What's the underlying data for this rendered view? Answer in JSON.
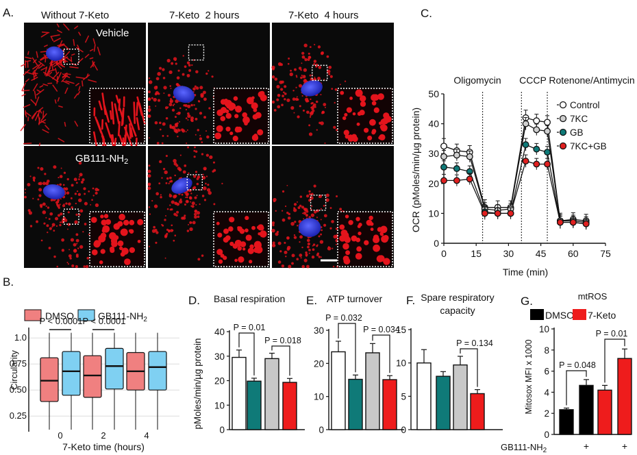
{
  "panel_labels": {
    "A": "A.",
    "B": "B.",
    "C": "C.",
    "D": "D.",
    "E": "E.",
    "F": "F.",
    "G": "G."
  },
  "microscopy": {
    "columns": [
      "Without 7-Keto",
      "7-Keto  2 hours",
      "7-Keto  4 hours"
    ],
    "row_labels": [
      "Vehicle",
      "GB111-NH2"
    ],
    "colors": {
      "mito": "#e4141c",
      "nucleus": "#2a36d8",
      "background": "#0a0a0a"
    }
  },
  "chart_data": [
    {
      "id": "B",
      "type": "boxplot",
      "legend": [
        "DMSO",
        "GB111-NH2"
      ],
      "colors": {
        "DMSO": "#f08080",
        "GB111-NH2": "#7fd0f2"
      },
      "categories": [
        "0",
        "2",
        "4"
      ],
      "xlabel": "7-Keto time (hours)",
      "ylabel": "Circularity",
      "yticks": [
        "1.0",
        "0.75",
        "0.50",
        "0.25"
      ],
      "ylim": [
        0.1,
        1.1
      ],
      "boxes": [
        {
          "cat": "0",
          "group": "DMSO",
          "whisker_low": 0.12,
          "q1": 0.39,
          "median": 0.59,
          "q3": 0.81,
          "whisker_high": 1.05
        },
        {
          "cat": "0",
          "group": "GB111-NH2",
          "whisker_low": 0.12,
          "q1": 0.45,
          "median": 0.68,
          "q3": 0.87,
          "whisker_high": 1.05
        },
        {
          "cat": "2",
          "group": "DMSO",
          "whisker_low": 0.12,
          "q1": 0.43,
          "median": 0.64,
          "q3": 0.83,
          "whisker_high": 1.05
        },
        {
          "cat": "2",
          "group": "GB111-NH2",
          "whisker_low": 0.12,
          "q1": 0.51,
          "median": 0.73,
          "q3": 0.9,
          "whisker_high": 1.05
        },
        {
          "cat": "4",
          "group": "DMSO",
          "whisker_low": 0.12,
          "q1": 0.5,
          "median": 0.68,
          "q3": 0.86,
          "whisker_high": 1.05
        },
        {
          "cat": "4",
          "group": "GB111-NH2",
          "whisker_low": 0.12,
          "q1": 0.5,
          "median": 0.72,
          "q3": 0.87,
          "whisker_high": 1.05
        }
      ],
      "annotations": [
        "P < 0.0001",
        "P < 0.0001"
      ]
    },
    {
      "id": "C",
      "type": "line",
      "xlabel": "Time (min)",
      "ylabel": "OCR (pMoles/min/µg protein)",
      "xlim": [
        0,
        75
      ],
      "ylim": [
        0,
        50
      ],
      "xticks": [
        "0",
        "15",
        "30",
        "45",
        "60",
        "75"
      ],
      "yticks": [
        "0",
        "10",
        "20",
        "30",
        "40",
        "50"
      ],
      "phase_labels": [
        "Oligomycin",
        "CCCP",
        "Rotenone/Antimycin"
      ],
      "phase_times": [
        18,
        36,
        48
      ],
      "x": [
        0,
        6,
        12,
        19,
        25,
        31,
        38,
        43,
        48,
        54,
        60,
        66
      ],
      "series": [
        {
          "name": "Control",
          "color": "#ffffff",
          "values": [
            32.5,
            31,
            30.5,
            12,
            12,
            12,
            42,
            41,
            40.5,
            7.5,
            8,
            7.5
          ]
        },
        {
          "name": "7KC",
          "color": "#cfcfcf",
          "values": [
            29,
            29.5,
            29,
            11.5,
            11,
            11.5,
            40,
            38,
            37.5,
            7.5,
            7.5,
            7
          ]
        },
        {
          "name": "GB",
          "color": "#0f7a78",
          "values": [
            25.5,
            25,
            24,
            10.5,
            10,
            10,
            33,
            31.5,
            30.5,
            7,
            7,
            6.5
          ]
        },
        {
          "name": "7KC+GB",
          "color": "#e02020",
          "values": [
            21,
            21,
            21.5,
            10,
            10,
            10,
            27.5,
            26.5,
            26.5,
            7,
            7,
            6.5
          ]
        }
      ]
    },
    {
      "id": "D",
      "type": "bar",
      "title": "Basal respiration",
      "ylabel": "pMoles/min/µg protein",
      "ylim": [
        0,
        40
      ],
      "yticks": [
        "0",
        "10",
        "20",
        "30",
        "40"
      ],
      "values": [
        29.5,
        19.8,
        29,
        19.3
      ],
      "errors": [
        3,
        1.2,
        2.2,
        1.6
      ],
      "colors": [
        "#ffffff",
        "#0f7a78",
        "#c8c8c8",
        "#ee1c1c"
      ],
      "annotations": [
        "P = 0.01",
        "P = 0.018"
      ]
    },
    {
      "id": "E",
      "type": "bar",
      "title": "ATP turnover",
      "ylim": [
        0,
        30
      ],
      "yticks": [
        "0",
        "10",
        "20",
        "30"
      ],
      "values": [
        23.5,
        15.2,
        23.2,
        15.1
      ],
      "errors": [
        3.2,
        1.3,
        2.8,
        1.2
      ],
      "colors": [
        "#ffffff",
        "#0f7a78",
        "#c8c8c8",
        "#ee1c1c"
      ],
      "annotations": [
        "P = 0.032",
        "P = 0.034"
      ]
    },
    {
      "id": "F",
      "type": "bar",
      "title": "Spare respiratory capacity",
      "title_lines": [
        "Spare respiratory",
        "capacity"
      ],
      "ylim": [
        0,
        15
      ],
      "yticks": [
        "0",
        "5",
        "10",
        "15"
      ],
      "values": [
        10,
        8,
        9.7,
        5.4
      ],
      "errors": [
        2,
        0.7,
        1.3,
        0.6
      ],
      "colors": [
        "#ffffff",
        "#0f7a78",
        "#c8c8c8",
        "#ee1c1c"
      ],
      "annotations": [
        "P = 0.134"
      ]
    },
    {
      "id": "G",
      "type": "bar",
      "title": "mtROS",
      "legend": [
        "DMSO",
        "7-Keto"
      ],
      "ylabel": "Mitosox MFI x 1000",
      "ylim": [
        0,
        10
      ],
      "yticks": [
        "0",
        "2",
        "4",
        "6",
        "8",
        "10"
      ],
      "values": [
        2.35,
        4.65,
        4.2,
        7.2
      ],
      "errors": [
        0.15,
        0.55,
        0.45,
        0.9
      ],
      "colors": [
        "#000000",
        "#000000",
        "#ee1c1c",
        "#ee1c1c"
      ],
      "annotations": [
        "P = 0.048",
        "P = 0.01"
      ],
      "xfactor_label": "GB111-NH2",
      "xfactor_marks": [
        "",
        "+",
        "",
        "+"
      ]
    }
  ]
}
